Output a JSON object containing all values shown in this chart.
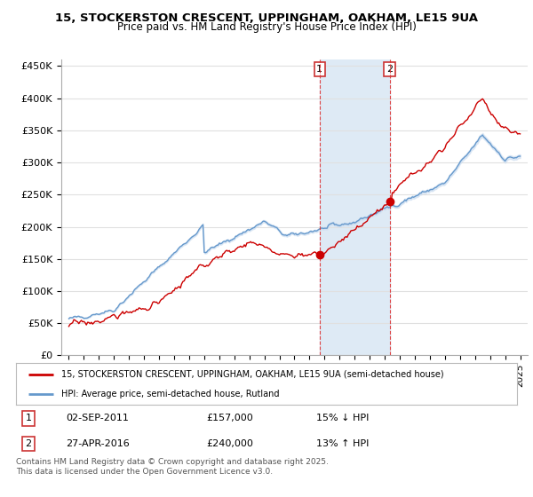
{
  "title": "15, STOCKERSTON CRESCENT, UPPINGHAM, OAKHAM, LE15 9UA",
  "subtitle": "Price paid vs. HM Land Registry's House Price Index (HPI)",
  "ylim": [
    0,
    460000
  ],
  "yticks": [
    0,
    50000,
    100000,
    150000,
    200000,
    250000,
    300000,
    350000,
    400000,
    450000
  ],
  "ytick_labels": [
    "£0",
    "£50K",
    "£100K",
    "£150K",
    "£200K",
    "£250K",
    "£300K",
    "£350K",
    "£400K",
    "£450K"
  ],
  "background_color": "#ffffff",
  "grid_color": "#e0e0e0",
  "line1_color": "#cc0000",
  "line2_color": "#6699cc",
  "line2_fill_color": "#ccddf0",
  "shade_color": "#deeaf5",
  "transaction1_year": 2011.67,
  "transaction1_price": 157000,
  "transaction1_date": "02-SEP-2011",
  "transaction1_pct": "15% ↓ HPI",
  "transaction2_year": 2016.33,
  "transaction2_price": 240000,
  "transaction2_date": "27-APR-2016",
  "transaction2_pct": "13% ↑ HPI",
  "legend_line1": "15, STOCKERSTON CRESCENT, UPPINGHAM, OAKHAM, LE15 9UA (semi-detached house)",
  "legend_line2": "HPI: Average price, semi-detached house, Rutland",
  "footnote": "Contains HM Land Registry data © Crown copyright and database right 2025.\nThis data is licensed under the Open Government Licence v3.0."
}
